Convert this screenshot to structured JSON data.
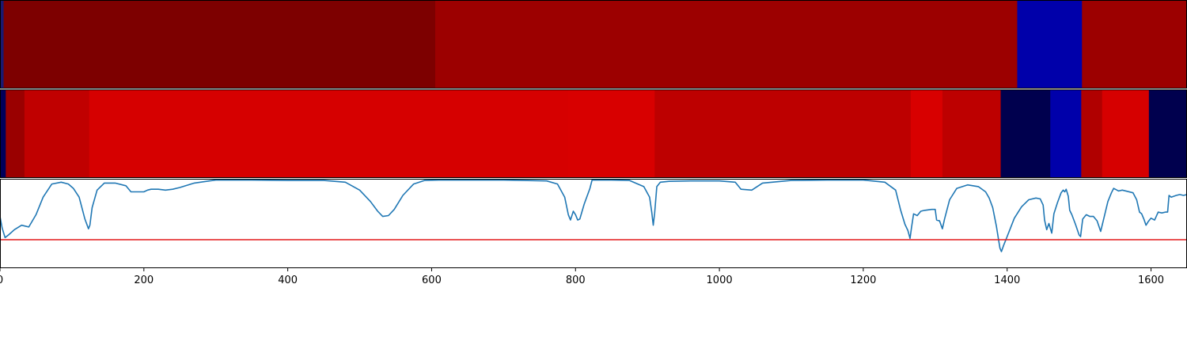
{
  "chart_data": [
    {
      "type": "heatmap",
      "row": "top",
      "xlim": [
        0,
        1650
      ],
      "segments": [
        {
          "x0": 0,
          "x1": 5,
          "color": "#1a1a70"
        },
        {
          "x0": 5,
          "x1": 605,
          "color": "#7d0000"
        },
        {
          "x0": 605,
          "x1": 1414,
          "color": "#9c0000"
        },
        {
          "x0": 1414,
          "x1": 1504,
          "color": "#0000aa"
        },
        {
          "x0": 1504,
          "x1": 1650,
          "color": "#9c0000"
        }
      ]
    },
    {
      "type": "heatmap",
      "row": "middle",
      "xlim": [
        0,
        1650
      ],
      "segments": [
        {
          "x0": 0,
          "x1": 8,
          "color": "#00005a"
        },
        {
          "x0": 8,
          "x1": 34,
          "color": "#9a0000"
        },
        {
          "x0": 34,
          "x1": 124,
          "color": "#c00000"
        },
        {
          "x0": 124,
          "x1": 790,
          "color": "#d60000"
        },
        {
          "x0": 790,
          "x1": 910,
          "color": "#d80000"
        },
        {
          "x0": 910,
          "x1": 1266,
          "color": "#bd0000"
        },
        {
          "x0": 1266,
          "x1": 1310,
          "color": "#d80000"
        },
        {
          "x0": 1310,
          "x1": 1391,
          "color": "#bd0000"
        },
        {
          "x0": 1391,
          "x1": 1460,
          "color": "#00004e"
        },
        {
          "x0": 1460,
          "x1": 1503,
          "color": "#0000aa"
        },
        {
          "x0": 1503,
          "x1": 1532,
          "color": "#b00000"
        },
        {
          "x0": 1532,
          "x1": 1597,
          "color": "#d60000"
        },
        {
          "x0": 1597,
          "x1": 1650,
          "color": "#00004e"
        }
      ]
    },
    {
      "type": "line",
      "row": "bottom",
      "xlim": [
        0,
        1650
      ],
      "ylim": [
        0,
        1
      ],
      "grid": false,
      "xticks": [
        0,
        200,
        400,
        600,
        800,
        1000,
        1200,
        1400,
        1600
      ],
      "series": [
        {
          "color": "#1f77b4",
          "x": [
            0,
            3,
            7,
            12,
            20,
            30,
            35,
            40,
            50,
            60,
            72,
            85,
            95,
            102,
            110,
            118,
            123,
            125,
            128,
            135,
            145,
            160,
            175,
            182,
            190,
            200,
            205,
            210,
            220,
            230,
            240,
            250,
            270,
            300,
            350,
            400,
            450,
            480,
            500,
            515,
            525,
            532,
            540,
            548,
            560,
            575,
            590,
            610,
            650,
            700,
            760,
            775,
            785,
            790,
            793,
            797,
            800,
            803,
            806,
            812,
            820,
            823,
            830,
            850,
            875,
            895,
            903,
            906,
            908,
            910,
            913,
            918,
            930,
            960,
            1000,
            1022,
            1030,
            1045,
            1060,
            1100,
            1150,
            1200,
            1230,
            1245,
            1252,
            1258,
            1262,
            1265,
            1267,
            1270,
            1275,
            1280,
            1285,
            1295,
            1300,
            1302,
            1306,
            1310,
            1313,
            1320,
            1330,
            1345,
            1360,
            1370,
            1375,
            1380,
            1385,
            1388,
            1390,
            1392,
            1395,
            1400,
            1410,
            1420,
            1430,
            1440,
            1446,
            1450,
            1452,
            1455,
            1458,
            1462,
            1465,
            1470,
            1475,
            1478,
            1480,
            1482,
            1485,
            1487,
            1490,
            1495,
            1500,
            1502,
            1503,
            1505,
            1510,
            1515,
            1520,
            1525,
            1530,
            1535,
            1540,
            1545,
            1548,
            1555,
            1560,
            1575,
            1580,
            1584,
            1587,
            1590,
            1593,
            1596,
            1600,
            1605,
            1610,
            1615,
            1620,
            1623,
            1625,
            1628,
            1635,
            1640,
            1645,
            1650
          ],
          "y": [
            0.58,
            0.45,
            0.34,
            0.37,
            0.43,
            0.48,
            0.47,
            0.46,
            0.6,
            0.8,
            0.95,
            0.97,
            0.95,
            0.9,
            0.8,
            0.55,
            0.44,
            0.48,
            0.68,
            0.88,
            0.96,
            0.96,
            0.93,
            0.86,
            0.86,
            0.86,
            0.88,
            0.89,
            0.89,
            0.88,
            0.89,
            0.91,
            0.96,
            0.995,
            0.995,
            0.99,
            0.99,
            0.97,
            0.88,
            0.75,
            0.64,
            0.58,
            0.59,
            0.66,
            0.82,
            0.95,
            0.99,
            0.995,
            0.995,
            0.995,
            0.985,
            0.95,
            0.8,
            0.6,
            0.54,
            0.64,
            0.6,
            0.54,
            0.55,
            0.72,
            0.9,
            0.995,
            0.995,
            0.995,
            0.99,
            0.92,
            0.8,
            0.63,
            0.48,
            0.62,
            0.92,
            0.97,
            0.98,
            0.985,
            0.985,
            0.97,
            0.89,
            0.88,
            0.96,
            0.99,
            0.995,
            0.995,
            0.97,
            0.88,
            0.65,
            0.49,
            0.42,
            0.33,
            0.45,
            0.61,
            0.59,
            0.64,
            0.65,
            0.66,
            0.66,
            0.54,
            0.53,
            0.44,
            0.55,
            0.77,
            0.9,
            0.94,
            0.92,
            0.86,
            0.79,
            0.68,
            0.47,
            0.32,
            0.22,
            0.18,
            0.25,
            0.35,
            0.56,
            0.69,
            0.77,
            0.79,
            0.78,
            0.71,
            0.54,
            0.43,
            0.5,
            0.39,
            0.61,
            0.74,
            0.85,
            0.88,
            0.86,
            0.89,
            0.81,
            0.65,
            0.6,
            0.49,
            0.37,
            0.35,
            0.42,
            0.55,
            0.6,
            0.58,
            0.58,
            0.53,
            0.41,
            0.58,
            0.75,
            0.85,
            0.9,
            0.87,
            0.88,
            0.85,
            0.77,
            0.63,
            0.61,
            0.55,
            0.48,
            0.52,
            0.56,
            0.54,
            0.63,
            0.62,
            0.63,
            0.63,
            0.82,
            0.8,
            0.82,
            0.83,
            0.82,
            0.83
          ]
        },
        {
          "color": "#e41a1c",
          "x": [
            0,
            1650
          ],
          "y": [
            0.315,
            0.315
          ]
        }
      ]
    }
  ]
}
